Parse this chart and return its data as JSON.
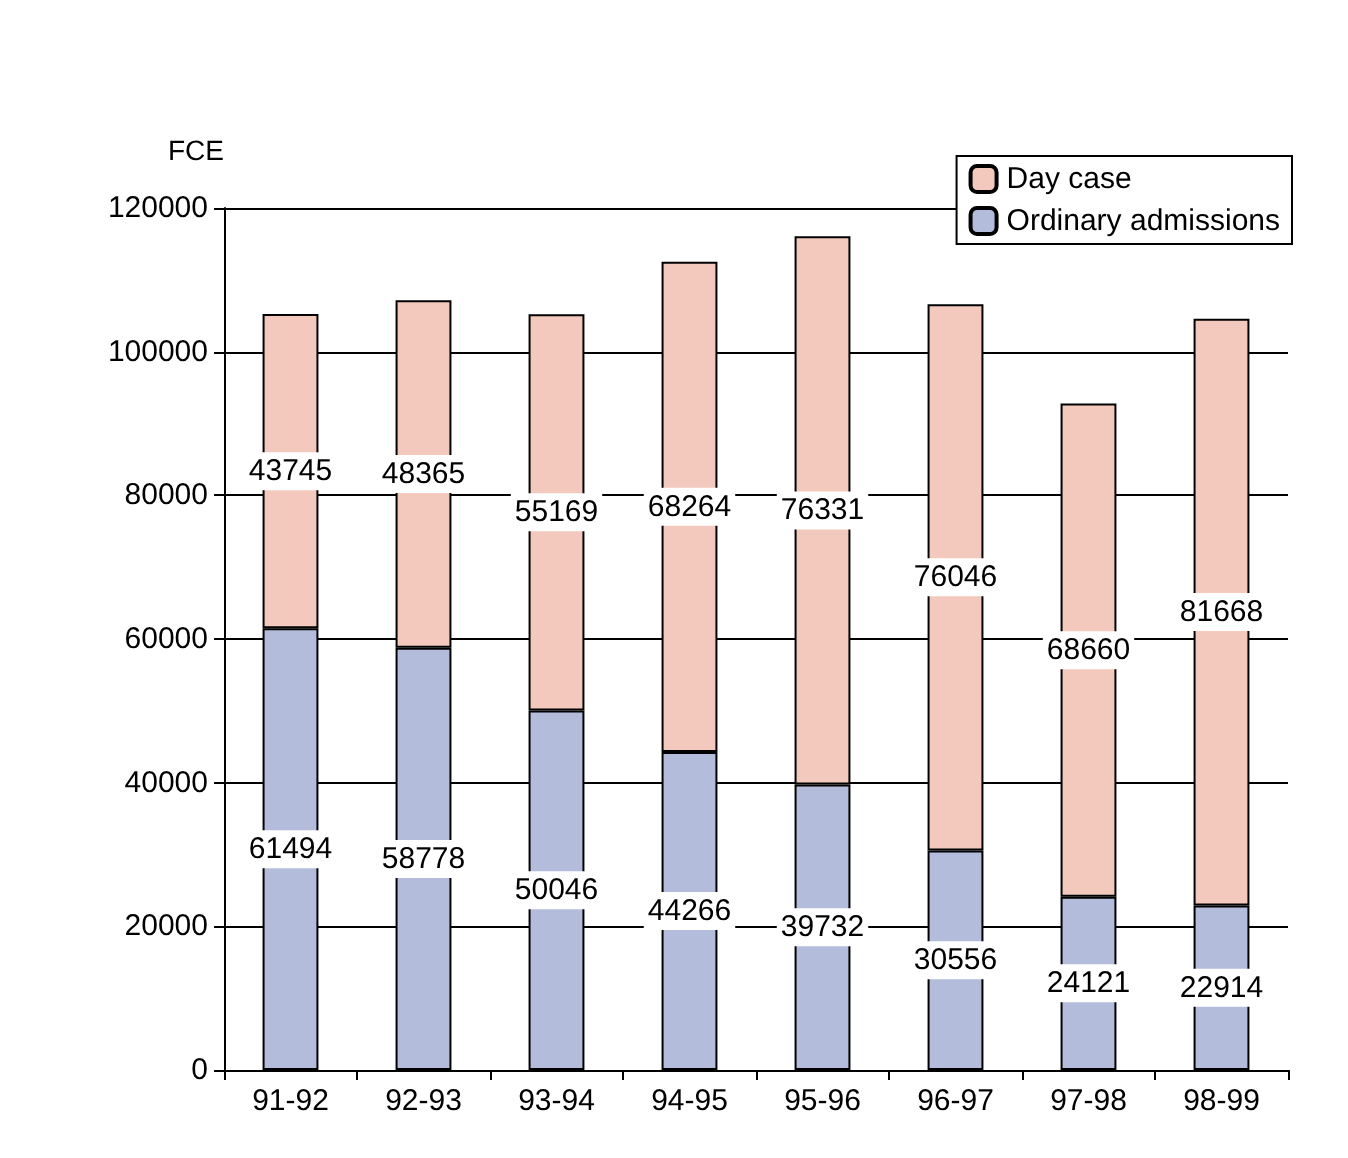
{
  "chart_data": {
    "type": "bar",
    "ylabel": "FCE",
    "categories": [
      "91-92",
      "92-93",
      "93-94",
      "94-95",
      "95-96",
      "96-97",
      "97-98",
      "98-99"
    ],
    "series": [
      {
        "name": "Ordinary admissions",
        "color": "#b4bcdc",
        "values": [
          61494,
          58778,
          50046,
          44266,
          39732,
          30556,
          24121,
          22914
        ]
      },
      {
        "name": "Day case",
        "color": "#f4c9bd",
        "values": [
          43745,
          48365,
          55169,
          68264,
          76331,
          76046,
          68660,
          81668
        ]
      }
    ],
    "stacked": true,
    "data_labels": true,
    "ylim": [
      0,
      120000
    ],
    "yticks": [
      0,
      20000,
      40000,
      60000,
      80000,
      100000,
      120000
    ],
    "grid": "y",
    "legend": "top right"
  }
}
